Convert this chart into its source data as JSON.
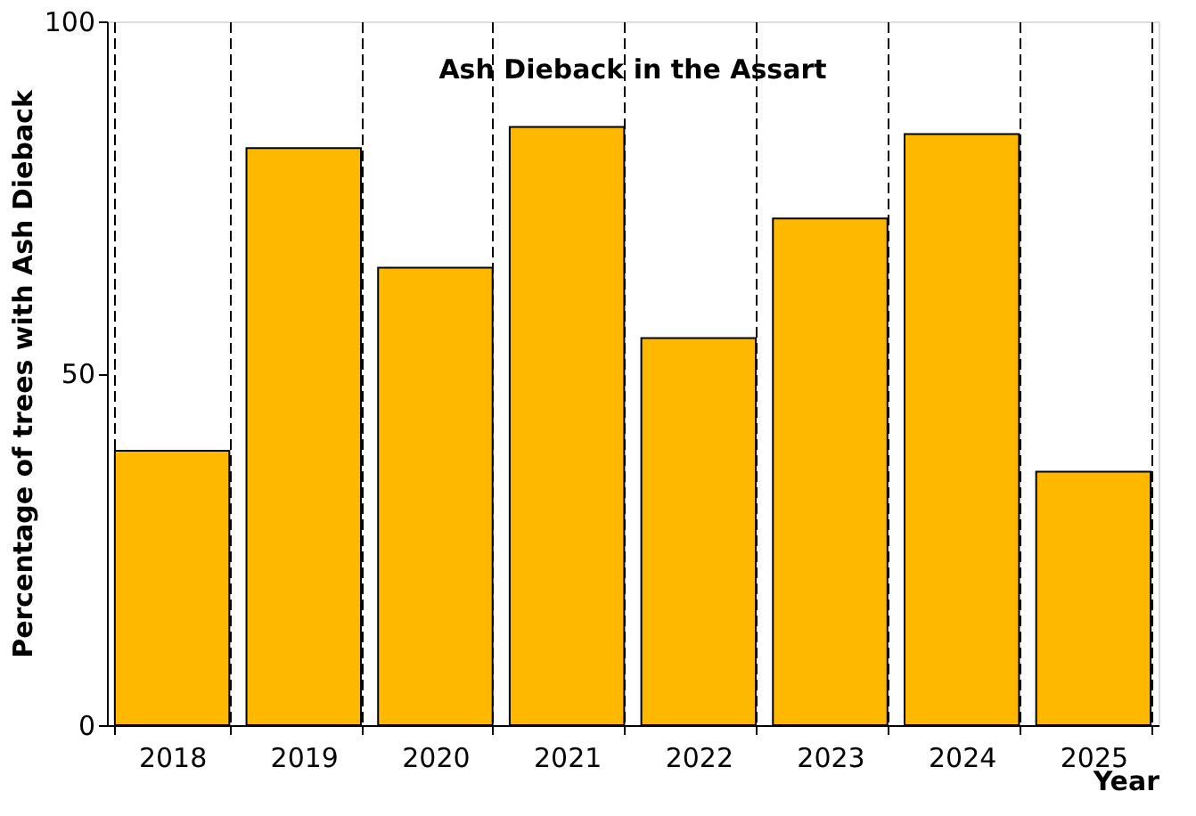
{
  "chart_data": {
    "type": "bar",
    "title": "Ash Dieback in the Assart",
    "xlabel": "Year",
    "ylabel": "Percentage of trees with Ash Dieback",
    "categories": [
      "2018",
      "2019",
      "2020",
      "2021",
      "2022",
      "2023",
      "2024",
      "2025"
    ],
    "values": [
      39,
      82,
      65,
      85,
      55,
      72,
      84,
      36
    ],
    "color": "#ffb800",
    "ylim": [
      0,
      100
    ],
    "yticks": [
      0,
      50,
      100
    ],
    "grid": "x",
    "line_style": "dashed"
  }
}
